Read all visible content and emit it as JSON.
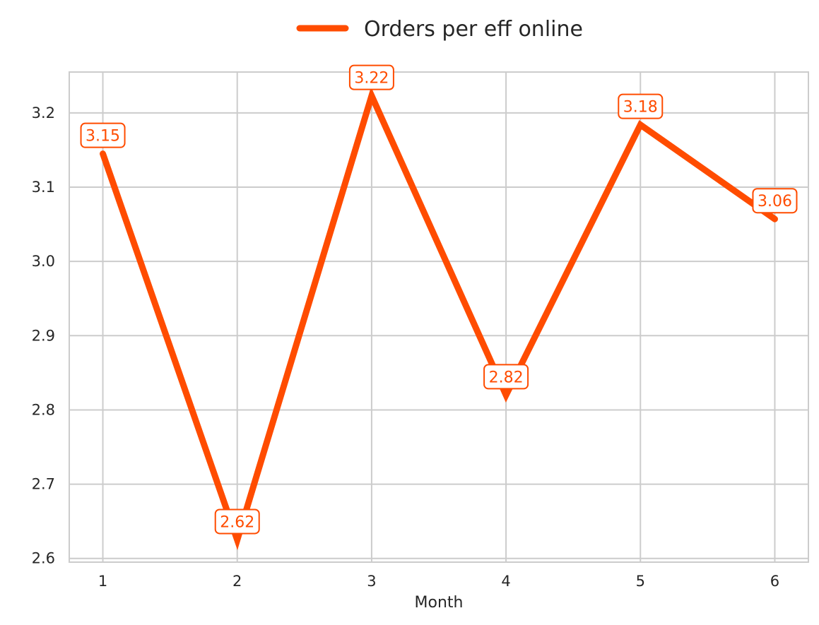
{
  "chart_data": {
    "type": "line",
    "title": "",
    "xlabel": "Month",
    "ylabel": "",
    "x": [
      1,
      2,
      3,
      4,
      5,
      6
    ],
    "x_tick_labels": [
      "1",
      "2",
      "3",
      "4",
      "5",
      "6"
    ],
    "y_ticks": [
      2.6,
      2.7,
      2.8,
      2.9,
      3.0,
      3.1,
      3.2
    ],
    "y_tick_labels": [
      "2.6",
      "2.7",
      "2.8",
      "2.9",
      "3.0",
      "3.1",
      "3.2"
    ],
    "xlim": [
      0.75,
      6.25
    ],
    "ylim": [
      2.595,
      3.255
    ],
    "grid": true,
    "legend_position": "top-center",
    "series": [
      {
        "name": "Orders per eff online",
        "color": "#ff4c00",
        "values": [
          3.145,
          2.625,
          3.223,
          2.82,
          3.184,
          3.057
        ],
        "data_labels": [
          "3.15",
          "2.62",
          "3.22",
          "2.82",
          "3.18",
          "3.06"
        ]
      }
    ]
  }
}
